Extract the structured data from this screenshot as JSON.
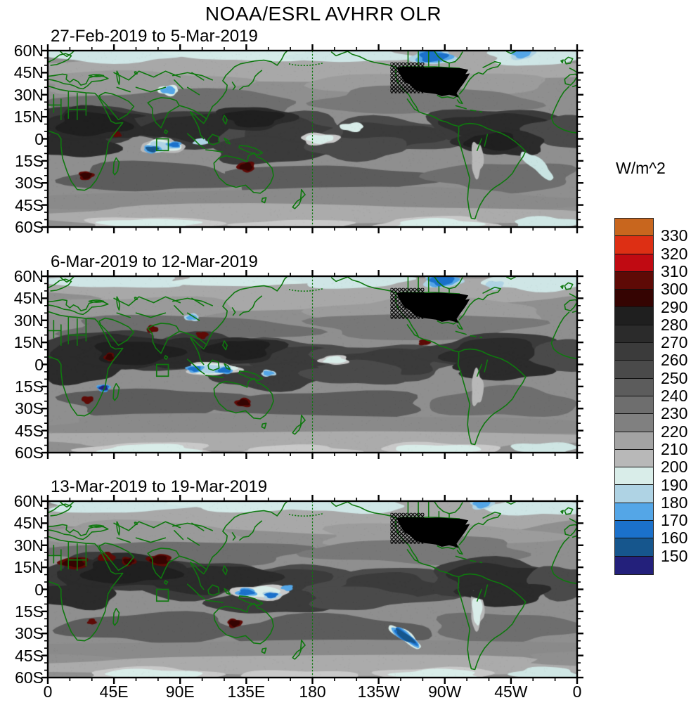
{
  "title": "NOAA/ESRL AVHRR OLR",
  "panels": [
    {
      "subtitle": "27-Feb-2019 to 5-Mar-2019"
    },
    {
      "subtitle": "6-Mar-2019 to 12-Mar-2019"
    },
    {
      "subtitle": "13-Mar-2019 to 19-Mar-2019"
    }
  ],
  "axes": {
    "lat_labels": [
      "60N",
      "45N",
      "30N",
      "15N",
      "0",
      "15S",
      "30S",
      "45S",
      "60S"
    ],
    "lon_labels": [
      "0",
      "45E",
      "90E",
      "135E",
      "180",
      "135W",
      "90W",
      "45W",
      "0"
    ]
  },
  "colorbar": {
    "title": "W/m^2",
    "tick_labels": [
      "330",
      "320",
      "310",
      "300",
      "290",
      "280",
      "270",
      "260",
      "250",
      "240",
      "230",
      "220",
      "210",
      "200",
      "190",
      "180",
      "170",
      "160",
      "150"
    ],
    "colors": [
      "#c8661e",
      "#dd2f14",
      "#c00a12",
      "#5e0a06",
      "#350402",
      "#1f1f1f",
      "#2b2b2b",
      "#3b3b3b",
      "#4a4a4a",
      "#5c5c5c",
      "#6e6e6e",
      "#808080",
      "#a3a3a3",
      "#b8b8b8",
      "#d9ede9",
      "#afd3e4",
      "#54a6e7",
      "#1b71cb",
      "#16568d",
      "#23207b"
    ],
    "coastline_color": "#0f780f"
  },
  "chart_data": {
    "type": "heatmap",
    "title": "NOAA/ESRL AVHRR OLR",
    "units": "W/m^2",
    "x_ticks": [
      "0",
      "45E",
      "90E",
      "135E",
      "180",
      "135W",
      "90W",
      "45W",
      "0"
    ],
    "y_ticks": [
      "60N",
      "45N",
      "30N",
      "15N",
      "0",
      "15S",
      "30S",
      "45S",
      "60S"
    ],
    "x_range_deg": [
      0,
      360
    ],
    "y_range_deg": [
      -60,
      60
    ],
    "levels_wm2": [
      150,
      160,
      170,
      180,
      190,
      200,
      210,
      220,
      230,
      240,
      250,
      260,
      270,
      280,
      290,
      300,
      310,
      320,
      330
    ],
    "palette_low_to_high": [
      "#23207b",
      "#16568d",
      "#1b71cb",
      "#54a6e7",
      "#afd3e4",
      "#d9ede9",
      "#b8b8b8",
      "#a3a3a3",
      "#808080",
      "#6e6e6e",
      "#5c5c5c",
      "#4a4a4a",
      "#3b3b3b",
      "#2b2b2b",
      "#1f1f1f",
      "#350402",
      "#5e0a06",
      "#c00a12",
      "#dd2f14",
      "#c8661e"
    ],
    "panels": [
      {
        "date_range": "27-Feb-2019 to 5-Mar-2019",
        "notable_features": [
          "Low OLR (blue, <190 W/m^2) over central Canada near 60N and far northeast Atlantic",
          "Low OLR patch over Tibetan Plateau ~30N 75-90E",
          "Deep convection (blue, ~160-180 W/m^2) central Indian Ocean near 0-10S, 70-90E beside green index box",
          "High OLR (dark red, ~290-310 W/m^2) over Horn of Africa, southern Africa and central Australia",
          "Very dark band (~280-290 W/m^2) across tropics; USA masked solid black with crosshatch",
          "Pale SACZ band southeast of Brazil ~20-30S"
        ]
      },
      {
        "date_range": "6-Mar-2019 to 12-Mar-2019",
        "notable_features": [
          "Blue low-OLR over Hudson Bay region near 55-60N",
          "Dark red spots over NE Africa ~5N 40E, India ~15N 77E, Indochina ~15N 105E and east Pacific ~15N 105W",
          "Deep blue convection cell off southeast Africa ~20S 35E",
          "Blue convective band along equator 100-150E (Indonesia / west Pacific)",
          "Dark red over interior Australia and southern Africa",
          "USA masked solid black with crosshatch"
        ]
      },
      {
        "date_range": "13-Mar-2019 to 19-Mar-2019",
        "notable_features": [
          "Large dark-red high-OLR areas over Sahara, Arabia and India ~10-25N",
          "Blue convection along equator 120-165E near New Guinea",
          "Elongated blue streak (~160-180 W/m^2) in SE Pacific ~25-35S, 125-105W",
          "Dark red over northwest Australia",
          "USA masked solid black with crosshatch"
        ]
      }
    ]
  }
}
